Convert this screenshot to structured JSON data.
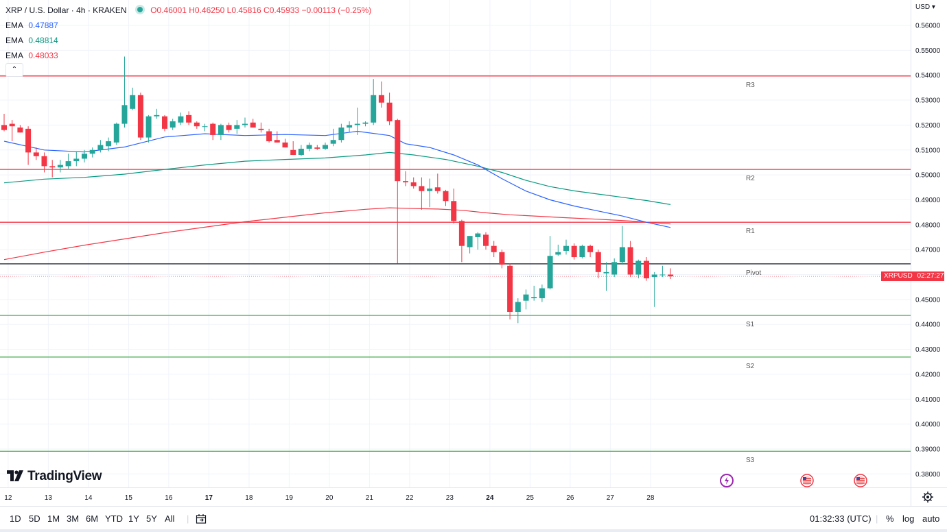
{
  "header": {
    "symbol": "XRP / U.S. Dollar · 4h · KRAKEN",
    "open": "O0.46001",
    "high": "H0.46250",
    "low": "L0.45816",
    "close": "C0.45933",
    "change": "−0.00113 (−0.25%)",
    "ema_label": "EMA",
    "emas": [
      {
        "value": "0.47887",
        "color": "#2962ff"
      },
      {
        "value": "0.48814",
        "color": "#089981"
      },
      {
        "value": "0.48033",
        "color": "#f23645"
      }
    ]
  },
  "currency": "USD",
  "logo_text": "TradingView",
  "price_tag": {
    "symbol": "XRPUSD",
    "time": "02:27:27"
  },
  "bottom": {
    "timeframes": [
      "1D",
      "5D",
      "1M",
      "3M",
      "6M",
      "YTD",
      "1Y",
      "5Y",
      "All"
    ],
    "clock": "01:32:33 (UTC)",
    "percent": "%",
    "log": "log",
    "auto": "auto"
  },
  "colors": {
    "up": "#26a69a",
    "down": "#f23645",
    "ema_fast": "#2962ff",
    "ema_mid": "#089981",
    "ema_slow": "#f23645",
    "resistance": "#f23645",
    "support": "#4caf50",
    "pivot": "#131722"
  },
  "chart_data": {
    "type": "candlestick",
    "y_ticks": [
      "0.56000",
      "0.55000",
      "0.54000",
      "0.53000",
      "0.52000",
      "0.51000",
      "0.50000",
      "0.49000",
      "0.48000",
      "0.47000",
      "0.46000",
      "0.45000",
      "0.44000",
      "0.43000",
      "0.42000",
      "0.41000",
      "0.40000",
      "0.39000",
      "0.38000"
    ],
    "ylim": [
      0.376,
      0.5635
    ],
    "x_ticks": [
      {
        "label": "12",
        "i": 0.5
      },
      {
        "label": "13",
        "i": 5.5
      },
      {
        "label": "14",
        "i": 10.5
      },
      {
        "label": "15",
        "i": 15.5
      },
      {
        "label": "16",
        "i": 20.5
      },
      {
        "label": "17",
        "i": 25.5,
        "bold": true
      },
      {
        "label": "18",
        "i": 30.5
      },
      {
        "label": "19",
        "i": 35.5
      },
      {
        "label": "20",
        "i": 40.5
      },
      {
        "label": "21",
        "i": 45.5
      },
      {
        "label": "22",
        "i": 50.5
      },
      {
        "label": "23",
        "i": 55.5
      },
      {
        "label": "24",
        "i": 60.5,
        "bold": true
      },
      {
        "label": "25",
        "i": 65.5
      },
      {
        "label": "26",
        "i": 70.5
      },
      {
        "label": "27",
        "i": 75.5
      },
      {
        "label": "28",
        "i": 80.5
      }
    ],
    "levels": [
      {
        "name": "R3",
        "value": 0.5397,
        "kind": "resistance"
      },
      {
        "name": "R2",
        "value": 0.5022,
        "kind": "resistance"
      },
      {
        "name": "R1",
        "value": 0.481,
        "kind": "resistance"
      },
      {
        "name": "Pivot",
        "value": 0.4643,
        "kind": "pivot"
      },
      {
        "name": "S1",
        "value": 0.4436,
        "kind": "support"
      },
      {
        "name": "S2",
        "value": 0.4269,
        "kind": "support"
      },
      {
        "name": "S3",
        "value": 0.3891,
        "kind": "support"
      }
    ],
    "candles": [
      {
        "o": 0.52,
        "h": 0.5245,
        "l": 0.5175,
        "c": 0.518
      },
      {
        "o": 0.5205,
        "h": 0.522,
        "l": 0.5135,
        "c": 0.5195
      },
      {
        "o": 0.519,
        "h": 0.52,
        "l": 0.517,
        "c": 0.517
      },
      {
        "o": 0.5185,
        "h": 0.5195,
        "l": 0.504,
        "c": 0.509
      },
      {
        "o": 0.509,
        "h": 0.511,
        "l": 0.506,
        "c": 0.5075
      },
      {
        "o": 0.5075,
        "h": 0.509,
        "l": 0.501,
        "c": 0.5035
      },
      {
        "o": 0.5035,
        "h": 0.506,
        "l": 0.499,
        "c": 0.503
      },
      {
        "o": 0.503,
        "h": 0.506,
        "l": 0.501,
        "c": 0.504
      },
      {
        "o": 0.5035,
        "h": 0.5085,
        "l": 0.5025,
        "c": 0.5055
      },
      {
        "o": 0.5055,
        "h": 0.5095,
        "l": 0.5035,
        "c": 0.5065
      },
      {
        "o": 0.5065,
        "h": 0.51,
        "l": 0.505,
        "c": 0.5085
      },
      {
        "o": 0.5085,
        "h": 0.511,
        "l": 0.507,
        "c": 0.51
      },
      {
        "o": 0.51,
        "h": 0.514,
        "l": 0.509,
        "c": 0.512
      },
      {
        "o": 0.5115,
        "h": 0.515,
        "l": 0.5095,
        "c": 0.5135
      },
      {
        "o": 0.513,
        "h": 0.521,
        "l": 0.512,
        "c": 0.5205
      },
      {
        "o": 0.5205,
        "h": 0.5475,
        "l": 0.519,
        "c": 0.528
      },
      {
        "o": 0.5265,
        "h": 0.535,
        "l": 0.526,
        "c": 0.532
      },
      {
        "o": 0.532,
        "h": 0.533,
        "l": 0.514,
        "c": 0.515
      },
      {
        "o": 0.515,
        "h": 0.524,
        "l": 0.513,
        "c": 0.5235
      },
      {
        "o": 0.5235,
        "h": 0.5265,
        "l": 0.5225,
        "c": 0.524
      },
      {
        "o": 0.5235,
        "h": 0.524,
        "l": 0.5175,
        "c": 0.5185
      },
      {
        "o": 0.519,
        "h": 0.5225,
        "l": 0.518,
        "c": 0.5215
      },
      {
        "o": 0.521,
        "h": 0.525,
        "l": 0.52,
        "c": 0.5235
      },
      {
        "o": 0.524,
        "h": 0.5255,
        "l": 0.52,
        "c": 0.521
      },
      {
        "o": 0.521,
        "h": 0.5215,
        "l": 0.5185,
        "c": 0.5195
      },
      {
        "o": 0.5195,
        "h": 0.5205,
        "l": 0.5175,
        "c": 0.5195
      },
      {
        "o": 0.5205,
        "h": 0.521,
        "l": 0.514,
        "c": 0.516
      },
      {
        "o": 0.516,
        "h": 0.5205,
        "l": 0.514,
        "c": 0.52
      },
      {
        "o": 0.52,
        "h": 0.521,
        "l": 0.517,
        "c": 0.518
      },
      {
        "o": 0.5185,
        "h": 0.522,
        "l": 0.5165,
        "c": 0.52
      },
      {
        "o": 0.52,
        "h": 0.523,
        "l": 0.519,
        "c": 0.5205
      },
      {
        "o": 0.521,
        "h": 0.5225,
        "l": 0.519,
        "c": 0.519
      },
      {
        "o": 0.5185,
        "h": 0.521,
        "l": 0.517,
        "c": 0.518
      },
      {
        "o": 0.5175,
        "h": 0.5185,
        "l": 0.513,
        "c": 0.5135
      },
      {
        "o": 0.514,
        "h": 0.5175,
        "l": 0.513,
        "c": 0.513
      },
      {
        "o": 0.513,
        "h": 0.5145,
        "l": 0.511,
        "c": 0.511
      },
      {
        "o": 0.51,
        "h": 0.5135,
        "l": 0.508,
        "c": 0.508
      },
      {
        "o": 0.508,
        "h": 0.512,
        "l": 0.5075,
        "c": 0.5105
      },
      {
        "o": 0.5105,
        "h": 0.513,
        "l": 0.5095,
        "c": 0.512
      },
      {
        "o": 0.511,
        "h": 0.512,
        "l": 0.51,
        "c": 0.5105
      },
      {
        "o": 0.5105,
        "h": 0.513,
        "l": 0.51,
        "c": 0.512
      },
      {
        "o": 0.5125,
        "h": 0.5185,
        "l": 0.5115,
        "c": 0.514
      },
      {
        "o": 0.514,
        "h": 0.5205,
        "l": 0.513,
        "c": 0.519
      },
      {
        "o": 0.519,
        "h": 0.5215,
        "l": 0.517,
        "c": 0.52
      },
      {
        "o": 0.52,
        "h": 0.527,
        "l": 0.516,
        "c": 0.5205
      },
      {
        "o": 0.5205,
        "h": 0.5215,
        "l": 0.5195,
        "c": 0.521
      },
      {
        "o": 0.521,
        "h": 0.5385,
        "l": 0.52,
        "c": 0.532
      },
      {
        "o": 0.532,
        "h": 0.5375,
        "l": 0.527,
        "c": 0.529
      },
      {
        "o": 0.529,
        "h": 0.533,
        "l": 0.52,
        "c": 0.5215
      },
      {
        "o": 0.522,
        "h": 0.5225,
        "l": 0.4645,
        "c": 0.4975
      },
      {
        "o": 0.4975,
        "h": 0.5015,
        "l": 0.4955,
        "c": 0.497
      },
      {
        "o": 0.497,
        "h": 0.499,
        "l": 0.4945,
        "c": 0.4955
      },
      {
        "o": 0.4955,
        "h": 0.499,
        "l": 0.486,
        "c": 0.4935
      },
      {
        "o": 0.4935,
        "h": 0.4985,
        "l": 0.487,
        "c": 0.4945
      },
      {
        "o": 0.495,
        "h": 0.5005,
        "l": 0.4925,
        "c": 0.4935
      },
      {
        "o": 0.4935,
        "h": 0.494,
        "l": 0.4875,
        "c": 0.4895
      },
      {
        "o": 0.4895,
        "h": 0.4945,
        "l": 0.4805,
        "c": 0.4815
      },
      {
        "o": 0.4815,
        "h": 0.482,
        "l": 0.465,
        "c": 0.4715
      },
      {
        "o": 0.471,
        "h": 0.4755,
        "l": 0.4685,
        "c": 0.4755
      },
      {
        "o": 0.475,
        "h": 0.477,
        "l": 0.47,
        "c": 0.4765
      },
      {
        "o": 0.476,
        "h": 0.477,
        "l": 0.47,
        "c": 0.4715
      },
      {
        "o": 0.4715,
        "h": 0.4735,
        "l": 0.467,
        "c": 0.469
      },
      {
        "o": 0.469,
        "h": 0.47,
        "l": 0.4625,
        "c": 0.464
      },
      {
        "o": 0.4635,
        "h": 0.4645,
        "l": 0.442,
        "c": 0.445
      },
      {
        "o": 0.445,
        "h": 0.4505,
        "l": 0.4405,
        "c": 0.449
      },
      {
        "o": 0.4495,
        "h": 0.454,
        "l": 0.446,
        "c": 0.452
      },
      {
        "o": 0.4505,
        "h": 0.4555,
        "l": 0.4495,
        "c": 0.451
      },
      {
        "o": 0.4505,
        "h": 0.456,
        "l": 0.449,
        "c": 0.4545
      },
      {
        "o": 0.4545,
        "h": 0.4755,
        "l": 0.454,
        "c": 0.4675
      },
      {
        "o": 0.468,
        "h": 0.472,
        "l": 0.4675,
        "c": 0.469
      },
      {
        "o": 0.4695,
        "h": 0.474,
        "l": 0.468,
        "c": 0.4715
      },
      {
        "o": 0.4715,
        "h": 0.4725,
        "l": 0.466,
        "c": 0.467
      },
      {
        "o": 0.467,
        "h": 0.472,
        "l": 0.4665,
        "c": 0.4715
      },
      {
        "o": 0.4715,
        "h": 0.472,
        "l": 0.467,
        "c": 0.469
      },
      {
        "o": 0.469,
        "h": 0.47,
        "l": 0.4585,
        "c": 0.461
      },
      {
        "o": 0.4605,
        "h": 0.465,
        "l": 0.4535,
        "c": 0.461
      },
      {
        "o": 0.46,
        "h": 0.4665,
        "l": 0.459,
        "c": 0.465
      },
      {
        "o": 0.465,
        "h": 0.4795,
        "l": 0.464,
        "c": 0.471
      },
      {
        "o": 0.471,
        "h": 0.4735,
        "l": 0.459,
        "c": 0.46
      },
      {
        "o": 0.46,
        "h": 0.466,
        "l": 0.4585,
        "c": 0.4655
      },
      {
        "o": 0.4655,
        "h": 0.467,
        "l": 0.4575,
        "c": 0.4585
      },
      {
        "o": 0.459,
        "h": 0.461,
        "l": 0.447,
        "c": 0.46
      },
      {
        "o": 0.46,
        "h": 0.4635,
        "l": 0.459,
        "c": 0.46
      },
      {
        "o": 0.46,
        "h": 0.4625,
        "l": 0.4582,
        "c": 0.4593
      }
    ],
    "ema_fast_points": [
      [
        0,
        0.5135
      ],
      [
        5,
        0.51
      ],
      [
        10,
        0.5092
      ],
      [
        15,
        0.5112
      ],
      [
        20,
        0.5152
      ],
      [
        25,
        0.5165
      ],
      [
        30,
        0.5158
      ],
      [
        35,
        0.5162
      ],
      [
        40,
        0.5158
      ],
      [
        44,
        0.5175
      ],
      [
        48,
        0.5158
      ],
      [
        50,
        0.5125
      ],
      [
        53,
        0.511
      ],
      [
        56,
        0.508
      ],
      [
        59,
        0.504
      ],
      [
        62,
        0.4985
      ],
      [
        65,
        0.4935
      ],
      [
        68,
        0.49
      ],
      [
        71,
        0.4875
      ],
      [
        74,
        0.4855
      ],
      [
        77,
        0.4835
      ],
      [
        80,
        0.481
      ],
      [
        83,
        0.4789
      ]
    ],
    "ema_mid_points": [
      [
        0,
        0.4968
      ],
      [
        5,
        0.4983
      ],
      [
        10,
        0.499
      ],
      [
        15,
        0.5003
      ],
      [
        20,
        0.5022
      ],
      [
        25,
        0.504
      ],
      [
        30,
        0.5055
      ],
      [
        35,
        0.5062
      ],
      [
        40,
        0.5068
      ],
      [
        45,
        0.508
      ],
      [
        48,
        0.509
      ],
      [
        51,
        0.508
      ],
      [
        55,
        0.5062
      ],
      [
        59,
        0.5035
      ],
      [
        62,
        0.501
      ],
      [
        65,
        0.4978
      ],
      [
        68,
        0.4953
      ],
      [
        71,
        0.4936
      ],
      [
        74,
        0.4923
      ],
      [
        77,
        0.491
      ],
      [
        80,
        0.4897
      ],
      [
        83,
        0.4881
      ]
    ],
    "ema_slow_points": [
      [
        0,
        0.466
      ],
      [
        5,
        0.469
      ],
      [
        10,
        0.4718
      ],
      [
        15,
        0.4743
      ],
      [
        20,
        0.4768
      ],
      [
        25,
        0.479
      ],
      [
        30,
        0.4812
      ],
      [
        35,
        0.483
      ],
      [
        40,
        0.4848
      ],
      [
        45,
        0.4862
      ],
      [
        48,
        0.4868
      ],
      [
        51,
        0.4865
      ],
      [
        54,
        0.4863
      ],
      [
        57,
        0.4858
      ],
      [
        60,
        0.4848
      ],
      [
        63,
        0.484
      ],
      [
        66,
        0.4835
      ],
      [
        70,
        0.4828
      ],
      [
        74,
        0.4822
      ],
      [
        78,
        0.4815
      ],
      [
        83,
        0.4803
      ]
    ]
  }
}
